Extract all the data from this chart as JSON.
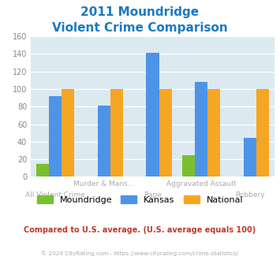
{
  "title_line1": "2011 Moundridge",
  "title_line2": "Violent Crime Comparison",
  "title_color": "#1a7abf",
  "categories": [
    "All Violent Crime",
    "Murder & Mans...",
    "Rape",
    "Aggravated Assault",
    "Robbery"
  ],
  "moundridge": [
    15,
    0,
    0,
    25,
    0
  ],
  "kansas": [
    92,
    81,
    141,
    108,
    44
  ],
  "national": [
    100,
    100,
    100,
    100,
    100
  ],
  "moundridge_color": "#7abf2e",
  "kansas_color": "#4d94e8",
  "national_color": "#f5a623",
  "ylim": [
    0,
    160
  ],
  "yticks": [
    0,
    20,
    40,
    60,
    80,
    100,
    120,
    140,
    160
  ],
  "plot_bg": "#dce9f0",
  "footer_text": "© 2024 CityRating.com - https://www.cityrating.com/crime-statistics/",
  "compare_text": "Compared to U.S. average. (U.S. average equals 100)",
  "compare_color": "#c0392b",
  "footer_color": "#aaaaaa",
  "legend_labels": [
    "Moundridge",
    "Kansas",
    "National"
  ],
  "bar_width": 0.26,
  "upper_labels": [
    "",
    "Murder & Mans...",
    "",
    "Aggravated Assault",
    ""
  ],
  "lower_labels": [
    "All Violent Crime",
    "",
    "Rape",
    "",
    "Robbery"
  ]
}
